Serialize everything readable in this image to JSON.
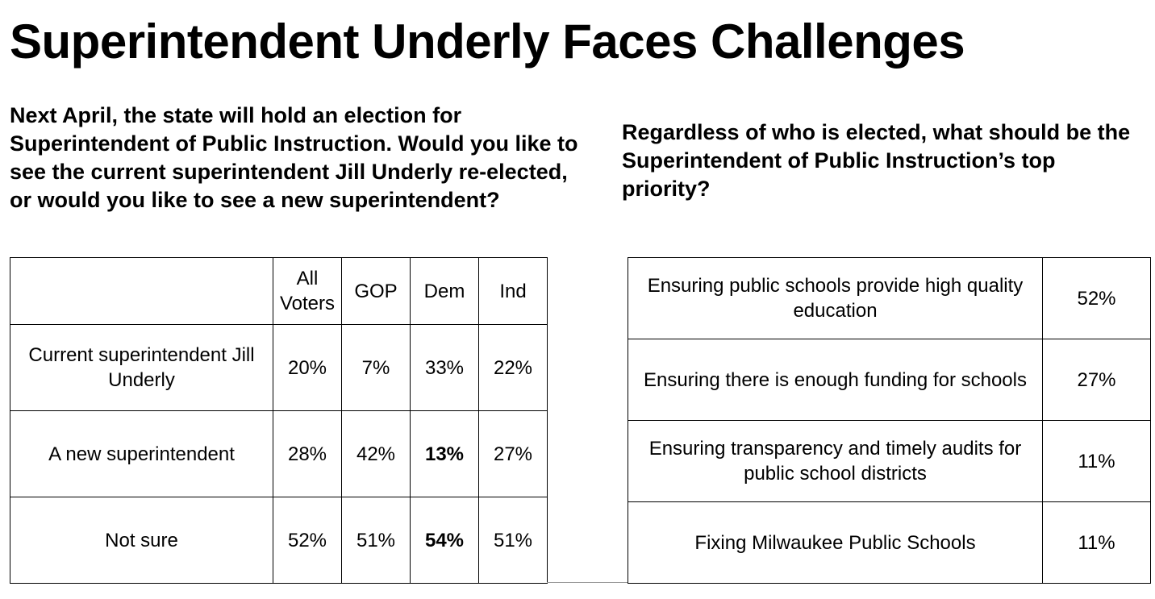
{
  "title": "Superintendent Underly Faces Challenges",
  "left": {
    "question": "Next April, the state will hold an election for Superintendent of Public Instruction. Would you like to see the current superintendent Jill Underly re-elected, or would you like to see a new superintendent?",
    "headers": [
      "",
      "All Voters",
      "GOP",
      "Dem",
      "Ind"
    ],
    "rows": [
      {
        "label": "Current superintendent Jill Underly",
        "values": [
          "20%",
          "7%",
          "33%",
          "22%"
        ]
      },
      {
        "label": "A new superintendent",
        "values": [
          "28%",
          "42%",
          "13%",
          "27%"
        ]
      },
      {
        "label": "Not sure",
        "values": [
          "52%",
          "51%",
          "54%",
          "51%"
        ]
      }
    ]
  },
  "right": {
    "question": "Regardless of who is elected, what should be the Superintendent of Public Instruction’s top priority?",
    "rows": [
      {
        "label": "Ensuring public schools provide high quality education",
        "value": "52%"
      },
      {
        "label": "Ensuring there is enough funding for schools",
        "value": "27%"
      },
      {
        "label": "Ensuring transparency and timely audits for public school districts",
        "value": "11%"
      },
      {
        "label": "Fixing Milwaukee Public Schools",
        "value": "11%"
      }
    ]
  }
}
